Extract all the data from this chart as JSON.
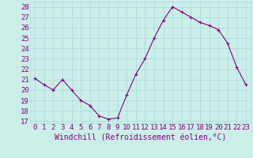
{
  "hours": [
    0,
    1,
    2,
    3,
    4,
    5,
    6,
    7,
    8,
    9,
    10,
    11,
    12,
    13,
    14,
    15,
    16,
    17,
    18,
    19,
    20,
    21,
    22,
    23
  ],
  "values": [
    21.1,
    20.5,
    20.0,
    21.0,
    20.0,
    19.0,
    18.5,
    17.5,
    17.2,
    17.3,
    19.5,
    21.5,
    23.0,
    25.0,
    26.7,
    28.0,
    27.5,
    27.0,
    26.5,
    26.2,
    25.8,
    24.5,
    22.2,
    20.5
  ],
  "line_color": "#800080",
  "marker": "+",
  "bg_color": "#cceee8",
  "grid_color": "#aaddda",
  "xlabel": "Windchill (Refroidissement éolien,°C)",
  "ylabel_ticks": [
    17,
    18,
    19,
    20,
    21,
    22,
    23,
    24,
    25,
    26,
    27,
    28
  ],
  "ylim": [
    16.8,
    28.5
  ],
  "xlim": [
    -0.5,
    23.5
  ],
  "tick_color": "#800080",
  "label_color": "#800080",
  "xlabel_fontsize": 7,
  "tick_fontsize": 6.5
}
